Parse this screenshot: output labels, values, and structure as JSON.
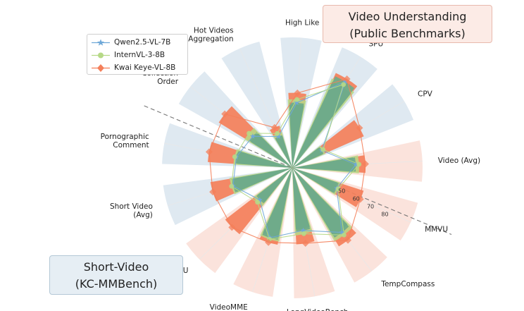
{
  "callouts": {
    "video": {
      "line1": "Video Understanding",
      "line2": "(Public Benchmarks)"
    },
    "short": {
      "line1": "Short-Video",
      "line2": "(KC-MMBench)"
    }
  },
  "colors": {
    "qwen": "#6fa8d8",
    "intern": "#b6d987",
    "kwai": "#f47f5a",
    "green_fill": "#6fab8a",
    "band_video": "#fbe3dc",
    "band_short": "#dfe9f1",
    "divider": "#777777"
  },
  "chart_data": {
    "type": "radar",
    "title": "",
    "rlim": [
      20,
      100
    ],
    "rticks": [
      "50",
      "60",
      "70",
      "80"
    ],
    "categories": [
      [
        "Video (Avg)"
      ],
      [
        "MMVU"
      ],
      [
        "TempCompass"
      ],
      [
        "LongVideoBench"
      ],
      [
        "VideoMME"
      ],
      [
        "VideoMMMU"
      ],
      [
        "Short Video",
        "(Avg)"
      ],
      [
        "Pornographic",
        "Comment"
      ],
      [
        "Collection",
        "Order"
      ],
      [
        "Hot Videos",
        "Aggregation"
      ],
      [
        "High Like"
      ],
      [
        "SPU"
      ],
      [
        "CPV"
      ]
    ],
    "groups": [
      "video",
      "video",
      "video",
      "video",
      "video",
      "video",
      "short",
      "short",
      "short",
      "short",
      "short",
      "short",
      "short"
    ],
    "series": [
      {
        "name": "Qwen2.5-VL-7B",
        "key": "qwen",
        "marker": "star",
        "values": [
          59,
          50,
          70,
          59,
          65,
          48,
          58,
          55,
          51,
          41,
          60,
          82,
          41
        ]
      },
      {
        "name": "InternVL-3-8B",
        "key": "intern",
        "marker": "circle",
        "values": [
          61,
          51,
          72,
          61,
          66,
          50,
          59,
          56,
          54,
          43,
          62,
          80,
          42
        ]
      },
      {
        "name": "Kwai Keye-VL-8B",
        "key": "kwai",
        "marker": "diamond",
        "values": [
          65,
          66,
          76,
          67,
          68,
          72,
          71,
          72,
          73,
          47,
          66,
          84,
          68
        ]
      }
    ],
    "legend_position": "upper-left"
  }
}
